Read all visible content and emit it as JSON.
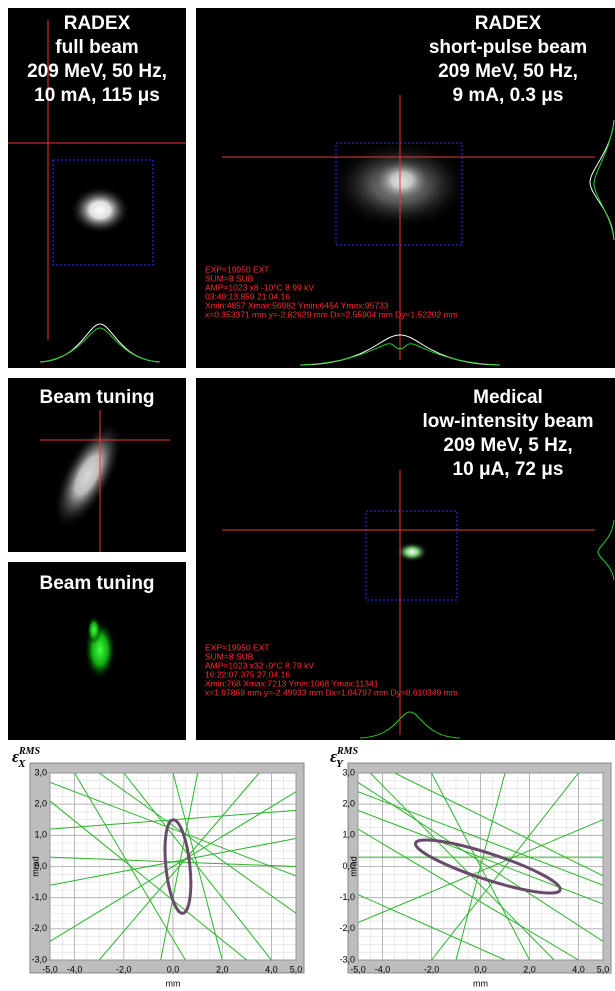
{
  "panels": [
    {
      "title_lines": [
        "RADEX",
        "full beam",
        "209 MeV, 50 Hz,",
        "10 mA, 115 μs"
      ]
    },
    {
      "title_lines": [
        "RADEX",
        "short-pulse beam",
        "209 MeV, 50 Hz,",
        "9 mA, 0.3 μs"
      ],
      "overlay_lines": [
        "EXP=19950 EXT",
        "SUM=8 SUB",
        "AMP=1023 x8 -10°C 8.99 kV",
        "03:49:13.859 21.04.16",
        "Xmin:4857 Xmax:56982 Ymin:6454 Ymax:95733",
        "x=0.353371 mm y=-2.82629 mm Dx=2.55904 mm Dy=1.52202 mm"
      ]
    },
    {
      "title_lines": [
        "Beam tuning"
      ]
    },
    {
      "title_lines": [
        "Beam tuning"
      ]
    },
    {
      "title_lines": [
        "Medical",
        "low-intensity beam",
        "209 MeV, 5 Hz,",
        "10 μA, 72 μs"
      ],
      "overlay_lines": [
        "EXP=19950 EXT",
        "SUM=8 SUB",
        "AMP=1023 x32 -9°C 8.79 kV",
        "16:22:07.375 27.04.16",
        "Xmin:768 Xmax:7213 Ymin:1068 Ymax:11341",
        "x=1.97869 mm y=-2.49933 mm Dx=1.04797 mm Dy=0.610349 mm"
      ]
    }
  ],
  "emittance_plots": [
    {
      "symbol": "ε",
      "subscript": "X",
      "superscript": "RMS",
      "xlabel": "mm",
      "ylabel": "mrad",
      "xlim": [
        -5,
        5
      ],
      "ylim": [
        -3,
        3
      ],
      "xticks": [
        {
          "value": -5,
          "label": "-5,0"
        },
        {
          "value": -4,
          "label": "-4,0"
        },
        {
          "value": -2,
          "label": "-2,0"
        },
        {
          "value": 0,
          "label": "0,0"
        },
        {
          "value": 2,
          "label": "2,0"
        },
        {
          "value": 4,
          "label": "4,0"
        },
        {
          "value": 5,
          "label": "5,0"
        }
      ],
      "yticks": [
        {
          "value": 3,
          "label": "3,0"
        },
        {
          "value": 2,
          "label": "2,0"
        },
        {
          "value": 1,
          "label": "1,0"
        },
        {
          "value": 0,
          "label": "0,0"
        },
        {
          "value": -1,
          "label": "-1,0"
        },
        {
          "value": -2,
          "label": "-2,0"
        },
        {
          "value": -3,
          "label": "-3,0"
        }
      ]
    },
    {
      "symbol": "ε",
      "subscript": "Y",
      "superscript": "RMS",
      "xlabel": "mm",
      "ylabel": "mrad",
      "xlim": [
        -5,
        5
      ],
      "ylim": [
        -3,
        3
      ],
      "xticks": [
        {
          "value": -5,
          "label": "-5,0"
        },
        {
          "value": -4,
          "label": "-4,0"
        },
        {
          "value": -2,
          "label": "-2,0"
        },
        {
          "value": 0,
          "label": "0,0"
        },
        {
          "value": 2,
          "label": "2,0"
        },
        {
          "value": 4,
          "label": "4,0"
        },
        {
          "value": 5,
          "label": "5,0"
        }
      ],
      "yticks": [
        {
          "value": 3,
          "label": "3,0"
        },
        {
          "value": 2,
          "label": "2,0"
        },
        {
          "value": 1,
          "label": "1,0"
        },
        {
          "value": 0,
          "label": "0,0"
        },
        {
          "value": -1,
          "label": "-1,0"
        },
        {
          "value": -2,
          "label": "-2,0"
        },
        {
          "value": -3,
          "label": "-3,0"
        }
      ]
    }
  ]
}
